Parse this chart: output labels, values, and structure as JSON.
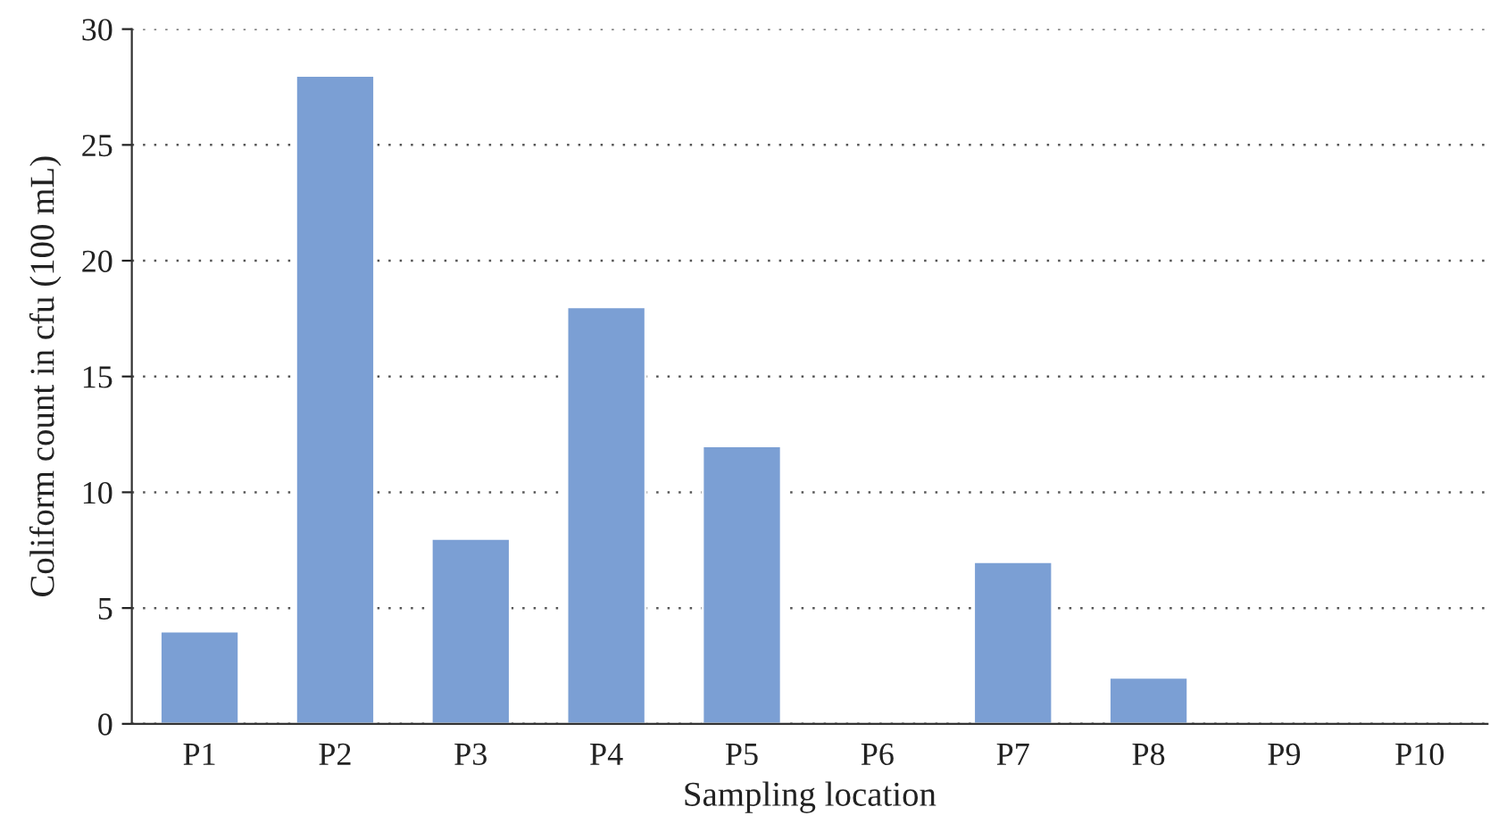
{
  "chart_data": {
    "type": "bar",
    "xlabel": "Sampling location",
    "ylabel": "Coliform count in cfu (100 mL)",
    "categories": [
      "P1",
      "P2",
      "P3",
      "P4",
      "P5",
      "P6",
      "P7",
      "P8",
      "P9",
      "P10"
    ],
    "values": [
      4,
      28,
      8,
      18,
      12,
      null,
      7,
      2,
      null,
      null
    ],
    "color": "#7b9fd4",
    "ylim": [
      0,
      30
    ],
    "yticks": [
      0,
      5,
      10,
      15,
      20,
      25,
      30
    ],
    "grid": "y",
    "legend": false
  }
}
